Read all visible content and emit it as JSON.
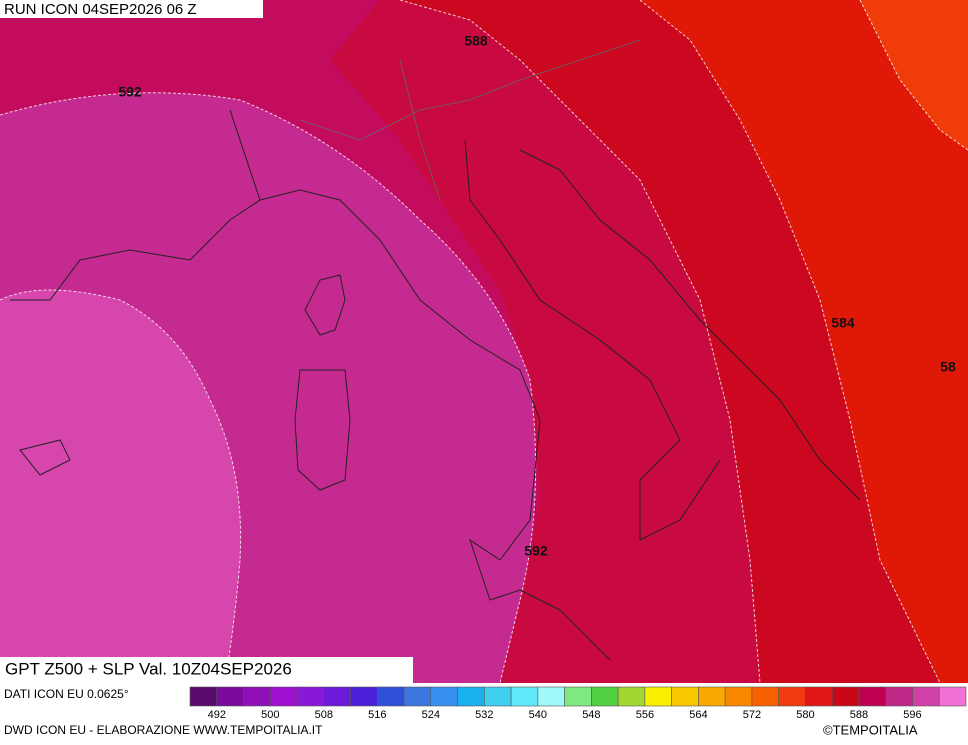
{
  "header": {
    "run": "RUN ICON 04SEP2026 06 Z"
  },
  "map": {
    "title": "GPT Z500 + SLP Val. 10Z04SEP2026",
    "contour_labels": [
      "588",
      "592",
      "592",
      "584",
      "58"
    ]
  },
  "colorbar": {
    "source": "DATI ICON EU 0.0625°",
    "colors": [
      "#5a0a6e",
      "#7a0a9a",
      "#9010b8",
      "#a010d0",
      "#8a18d8",
      "#6a1ad8",
      "#4a20d8",
      "#2e50d8",
      "#3a78e0",
      "#3a90f0",
      "#1ab0f0",
      "#40d0f0",
      "#60e8f8",
      "#a0f8f8",
      "#80e880",
      "#50d040",
      "#a0d830",
      "#f8f000",
      "#f8c800",
      "#f8a800",
      "#f88800",
      "#f86000",
      "#f03a10",
      "#e01818",
      "#c80818",
      "#c00050",
      "#c02888",
      "#d040a8",
      "#f070d8"
    ],
    "labels": [
      492,
      500,
      508,
      516,
      524,
      532,
      540,
      548,
      556,
      564,
      572,
      580,
      588,
      596
    ]
  },
  "footer": {
    "credit": "DWD ICON EU - ELABORAZIONE WWW.TEMPOITALIA.IT",
    "copyright": "©TEMPOITALIA"
  }
}
